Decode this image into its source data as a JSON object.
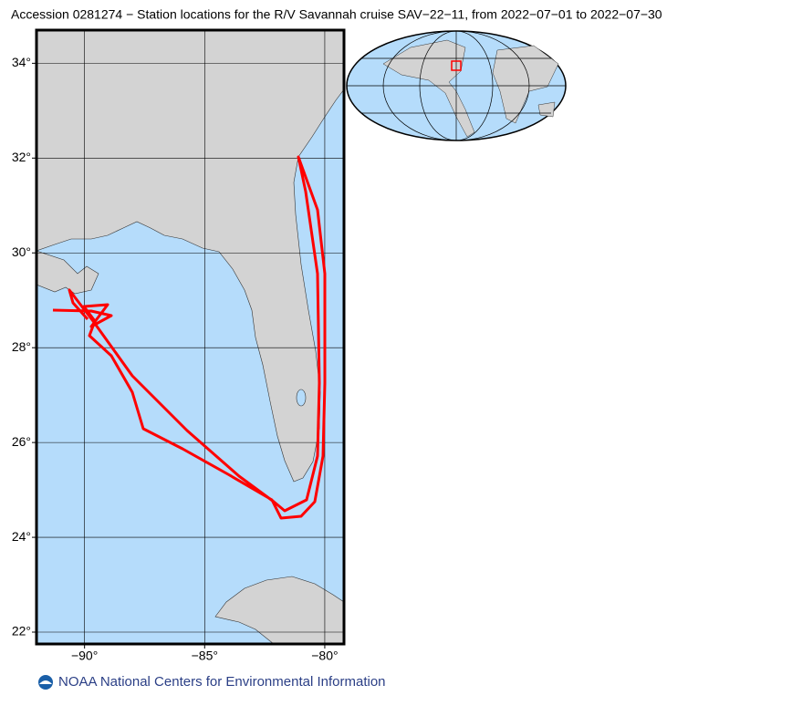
{
  "map": {
    "title": "Accession 0281274 − Station locations for the R/V Savannah cruise SAV−22−11, from 2022−07−01 to 2022−07−30",
    "xlim": [
      -92,
      -79.2
    ],
    "ylim": [
      21.75,
      34.7
    ],
    "xticks": [
      {
        "value": -90,
        "label": "−90°"
      },
      {
        "value": -85,
        "label": "−85°"
      },
      {
        "value": -80,
        "label": "−80°"
      }
    ],
    "yticks": [
      {
        "value": 22,
        "label": "22°"
      },
      {
        "value": 24,
        "label": "24°"
      },
      {
        "value": 26,
        "label": "26°"
      },
      {
        "value": 28,
        "label": "28°"
      },
      {
        "value": 30,
        "label": "30°"
      },
      {
        "value": 32,
        "label": "32°"
      },
      {
        "value": 34,
        "label": "34°"
      }
    ],
    "footer": "NOAA National Centers for Environmental Information"
  }
}
